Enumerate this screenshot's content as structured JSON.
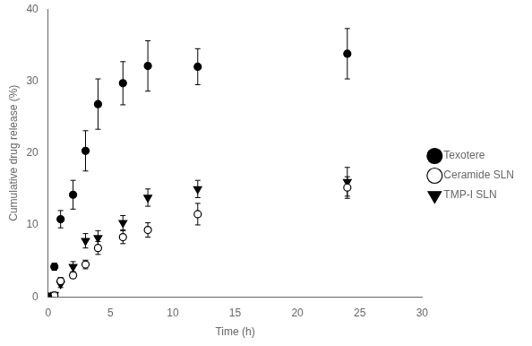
{
  "chart_data": {
    "type": "scatter",
    "xlabel": "Time (h)",
    "ylabel": "Cumulative drug release (%)",
    "xlim": [
      0,
      30
    ],
    "ylim": [
      0,
      40
    ],
    "xticks": [
      0,
      5,
      10,
      15,
      20,
      25,
      30
    ],
    "yticks": [
      0,
      10,
      20,
      30,
      40
    ],
    "grid": false,
    "legend": "right",
    "series": [
      {
        "name": "Texotere",
        "color": "#000000",
        "marker": "circle",
        "x": [
          0,
          0.5,
          1,
          2,
          3,
          4,
          6,
          8,
          12,
          24
        ],
        "values": [
          0,
          4.2,
          10.8,
          14.2,
          20.3,
          26.8,
          29.7,
          32.1,
          32.0,
          33.8
        ],
        "yerr": [
          0,
          0.5,
          1.2,
          2.0,
          2.8,
          3.5,
          3.0,
          3.5,
          2.5,
          3.5
        ]
      },
      {
        "name": "Ceramide SLN",
        "color": "#000000",
        "marker": "circle-open",
        "x": [
          0,
          0.5,
          1,
          2,
          3,
          4,
          6,
          8,
          12,
          24
        ],
        "values": [
          0,
          0.2,
          2.2,
          3.0,
          4.5,
          6.8,
          8.3,
          9.3,
          11.5,
          15.2
        ],
        "yerr": [
          0,
          0.2,
          0.5,
          0.4,
          0.6,
          0.9,
          0.9,
          1.0,
          1.5,
          1.5
        ]
      },
      {
        "name": "TMP-I SLN",
        "color": "#000000",
        "marker": "triangle-down",
        "x": [
          0,
          0.5,
          1,
          2,
          3,
          4,
          6,
          8,
          12,
          24
        ],
        "values": [
          0,
          0.3,
          1.8,
          4.2,
          7.8,
          8.2,
          10.3,
          13.8,
          15.0,
          16.0
        ],
        "yerr": [
          0,
          0.3,
          0.5,
          0.7,
          1.0,
          1.0,
          1.0,
          1.2,
          1.2,
          2.0
        ]
      }
    ]
  }
}
